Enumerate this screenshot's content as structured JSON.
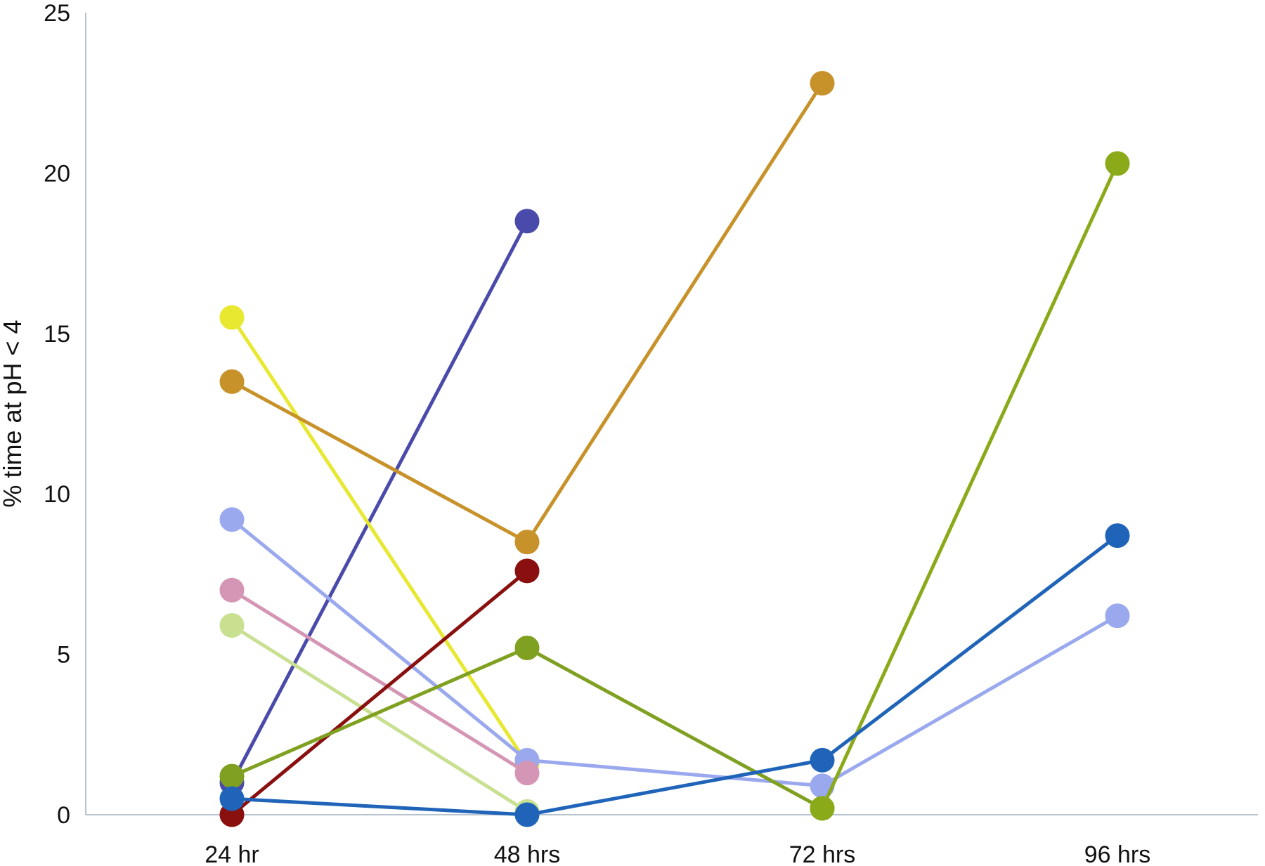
{
  "chart_data": {
    "type": "line",
    "title": "",
    "xlabel": "",
    "ylabel": "% time at pH < 4",
    "categories": [
      "24 hr",
      "48 hrs",
      "72 hrs",
      "96 hrs"
    ],
    "ylim": [
      0,
      25
    ],
    "yticks": [
      0,
      5,
      10,
      15,
      20,
      25
    ],
    "grid": false,
    "legend": "none",
    "series": [
      {
        "color": "#4a4aaa",
        "points": [
          [
            0,
            1.0
          ],
          [
            1,
            18.5
          ]
        ]
      },
      {
        "color": "#e8e830",
        "points": [
          [
            0,
            15.5
          ],
          [
            1,
            1.6
          ]
        ]
      },
      {
        "color": "#c8922a",
        "points": [
          [
            0,
            13.5
          ],
          [
            1,
            8.5
          ],
          [
            2,
            22.8
          ]
        ]
      },
      {
        "color": "#9aa8ee",
        "points": [
          [
            0,
            9.2
          ],
          [
            1,
            1.7
          ],
          [
            2,
            0.9
          ],
          [
            3,
            6.2
          ]
        ]
      },
      {
        "color": "#d496b4",
        "points": [
          [
            0,
            7.0
          ],
          [
            1,
            1.3
          ]
        ]
      },
      {
        "color": "#c8e090",
        "points": [
          [
            0,
            5.9
          ],
          [
            1,
            0.1
          ]
        ]
      },
      {
        "color": "#8a1010",
        "points": [
          [
            0,
            0.0
          ],
          [
            1,
            7.6
          ]
        ]
      },
      {
        "color": "#7fa020",
        "points": [
          [
            0,
            1.2
          ],
          [
            1,
            5.2
          ],
          [
            2,
            0.2
          ]
        ]
      },
      {
        "color": "#8aaa1a",
        "points": [
          [
            2,
            0.2
          ],
          [
            3,
            20.3
          ]
        ]
      },
      {
        "color": "#1f64b8",
        "points": [
          [
            0,
            0.5
          ],
          [
            1,
            0.0
          ],
          [
            2,
            1.7
          ],
          [
            3,
            8.7
          ]
        ]
      }
    ]
  }
}
